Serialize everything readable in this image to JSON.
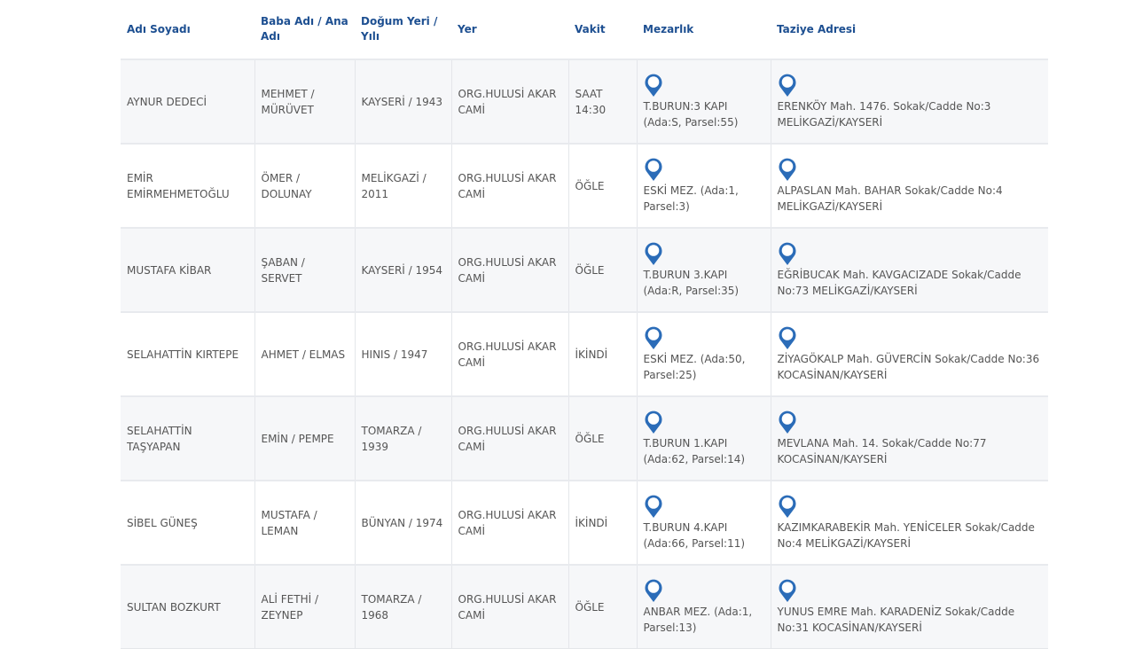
{
  "headers": [
    "Adı Soyadı",
    "Baba Adı / Ana Adı",
    "Doğum Yeri / Yılı",
    "Yer",
    "Vakit",
    "Mezarlık",
    "Taziye Adresi"
  ],
  "accent_color": "#1d4f91",
  "pin_icon": "map-pin-icon",
  "rows": [
    {
      "name": "AYNUR DEDECİ",
      "parents": "MEHMET / MÜRÜVET",
      "birth": "KAYSERİ / 1943",
      "place": "ORG.HULUSİ AKAR CAMİ",
      "time": "SAAT 14:30",
      "cemetery": "T.BURUN:3 KAPI (Ada:S, Parsel:55)",
      "address": "ERENKÖY Mah. 1476. Sokak/Cadde No:3 MELİKGAZİ/KAYSERİ"
    },
    {
      "name": "EMİR EMİRMEHMETOĞLU",
      "parents": "ÖMER / DOLUNAY",
      "birth": "MELİKGAZİ / 2011",
      "place": "ORG.HULUSİ AKAR CAMİ",
      "time": "ÖĞLE",
      "cemetery": "ESKİ MEZ. (Ada:1, Parsel:3)",
      "address": "ALPASLAN Mah. BAHAR Sokak/Cadde No:4 MELİKGAZİ/KAYSERİ"
    },
    {
      "name": "MUSTAFA KİBAR",
      "parents": "ŞABAN / SERVET",
      "birth": "KAYSERİ / 1954",
      "place": "ORG.HULUSİ AKAR CAMİ",
      "time": "ÖĞLE",
      "cemetery": "T.BURUN 3.KAPI (Ada:R, Parsel:35)",
      "address": "EĞRİBUCAK Mah. KAVGACIZADE Sokak/Cadde No:73 MELİKGAZİ/KAYSERİ"
    },
    {
      "name": "SELAHATTİN KIRTEPE",
      "parents": "AHMET / ELMAS",
      "birth": "HINIS / 1947",
      "place": "ORG.HULUSİ AKAR CAMİ",
      "time": "İKİNDİ",
      "cemetery": "ESKİ MEZ. (Ada:50, Parsel:25)",
      "address": "ZİYAGÖKALP Mah. GÜVERCİN Sokak/Cadde No:36 KOCASİNAN/KAYSERİ"
    },
    {
      "name": "SELAHATTİN TAŞYAPAN",
      "parents": "EMİN / PEMPE",
      "birth": "TOMARZA / 1939",
      "place": "ORG.HULUSİ AKAR CAMİ",
      "time": "ÖĞLE",
      "cemetery": "T.BURUN 1.KAPI (Ada:62, Parsel:14)",
      "address": "MEVLANA Mah. 14. Sokak/Cadde No:77 KOCASİNAN/KAYSERİ"
    },
    {
      "name": "SİBEL GÜNEŞ",
      "parents": "MUSTAFA / LEMAN",
      "birth": "BÜNYAN / 1974",
      "place": "ORG.HULUSİ AKAR CAMİ",
      "time": "İKİNDİ",
      "cemetery": "T.BURUN 4.KAPI (Ada:66, Parsel:11)",
      "address": "KAZIMKARABEKİR Mah. YENİCELER Sokak/Cadde No:4 MELİKGAZİ/KAYSERİ"
    },
    {
      "name": "SULTAN BOZKURT",
      "parents": "ALİ FETHİ / ZEYNEP",
      "birth": "TOMARZA / 1968",
      "place": "ORG.HULUSİ AKAR CAMİ",
      "time": "ÖĞLE",
      "cemetery": "ANBAR MEZ. (Ada:1, Parsel:13)",
      "address": "YUNUS EMRE Mah. KARADENİZ Sokak/Cadde No:31 KOCASİNAN/KAYSERİ"
    }
  ]
}
